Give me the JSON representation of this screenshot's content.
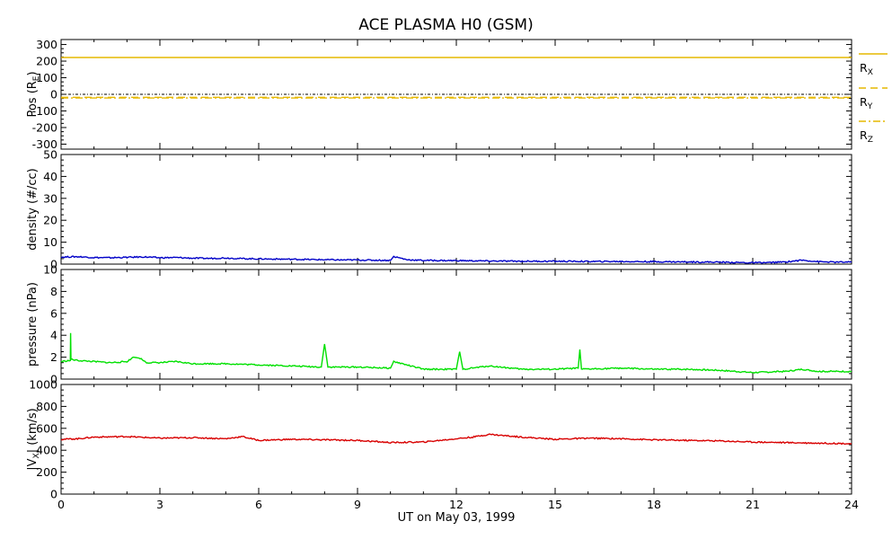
{
  "chart_data": [
    {
      "type": "line",
      "panel": "position",
      "title": "ACE PLASMA H0 (GSM)",
      "ylabel": "Pos (R",
      "ylabel_sub": "E",
      "ylabel_end": ")",
      "ylim": [
        -330,
        330
      ],
      "yticks": [
        300,
        200,
        100,
        0,
        -100,
        -200,
        -300
      ],
      "color": "#e6b800",
      "zero_line": true,
      "legend": [
        {
          "label": "R",
          "sub": "X",
          "style": "solid"
        },
        {
          "label": "R",
          "sub": "Y",
          "style": "dashed"
        },
        {
          "label": "R",
          "sub": "Z",
          "style": "dashdot"
        }
      ],
      "series": [
        {
          "name": "RX",
          "style": "solid",
          "x": [
            0,
            24
          ],
          "values": [
            222,
            222
          ]
        },
        {
          "name": "RY",
          "style": "dashed",
          "x": [
            0,
            24
          ],
          "values": [
            -18,
            -18
          ]
        },
        {
          "name": "RZ",
          "style": "dashdot",
          "x": [
            0,
            24
          ],
          "values": [
            -22,
            -22
          ]
        }
      ]
    },
    {
      "type": "line",
      "panel": "density",
      "ylabel": "density (#/cc)",
      "ylim": [
        0,
        50
      ],
      "yticks": [
        50,
        40,
        30,
        20,
        10,
        0
      ],
      "color": "#0000c8",
      "series": [
        {
          "name": "density",
          "x": [
            0,
            0.5,
            1,
            1.5,
            2,
            2.5,
            3,
            3.5,
            4,
            4.5,
            5,
            5.5,
            6,
            6.5,
            7,
            7.5,
            8,
            8.5,
            9,
            9.5,
            10,
            10.1,
            10.5,
            11,
            12,
            13,
            14,
            15,
            16,
            17,
            18,
            19,
            20,
            21,
            21.5,
            22,
            22.5,
            23,
            23.5,
            24
          ],
          "values": [
            3.2,
            3.4,
            3.0,
            2.9,
            3.1,
            3.3,
            2.9,
            3.0,
            2.7,
            2.6,
            2.8,
            2.5,
            2.4,
            2.3,
            2.2,
            2.1,
            2.0,
            1.9,
            1.9,
            1.8,
            1.7,
            3.5,
            2.0,
            1.7,
            1.6,
            1.4,
            1.3,
            1.3,
            1.2,
            1.2,
            1.1,
            1.0,
            0.9,
            0.6,
            0.7,
            1.0,
            1.8,
            1.1,
            0.9,
            0.9
          ]
        }
      ]
    },
    {
      "type": "line",
      "panel": "pressure",
      "ylabel": "pressure (nPa)",
      "ylim": [
        0,
        10
      ],
      "yticks": [
        10,
        8,
        6,
        4,
        2,
        0
      ],
      "color": "#00e000",
      "series": [
        {
          "name": "pressure",
          "x": [
            0,
            0.28,
            0.29,
            0.3,
            0.5,
            1,
            1.5,
            2,
            2.2,
            2.4,
            2.6,
            3,
            3.5,
            4,
            5,
            6,
            7,
            7.9,
            8.0,
            8.1,
            9,
            10,
            10.1,
            11,
            12,
            12.1,
            12.2,
            13,
            14,
            15,
            15.7,
            15.75,
            15.8,
            17,
            18,
            19,
            20,
            21,
            22,
            22.5,
            23,
            24
          ],
          "values": [
            1.6,
            1.7,
            4.2,
            1.8,
            1.7,
            1.6,
            1.5,
            1.6,
            2.0,
            1.9,
            1.5,
            1.5,
            1.6,
            1.4,
            1.4,
            1.3,
            1.2,
            1.1,
            3.2,
            1.1,
            1.1,
            1.0,
            1.6,
            0.9,
            0.9,
            2.5,
            0.9,
            1.2,
            0.9,
            0.9,
            1.0,
            2.7,
            0.9,
            1.0,
            0.9,
            0.9,
            0.8,
            0.6,
            0.7,
            0.9,
            0.7,
            0.7
          ]
        }
      ]
    },
    {
      "type": "line",
      "panel": "velocity",
      "ylabel": "|V",
      "ylabel_sub": "X",
      "ylabel_end": "| (km/s)",
      "ylim": [
        0,
        1000
      ],
      "yticks": [
        1000,
        800,
        600,
        400,
        200,
        0
      ],
      "color": "#d80000",
      "xlabel": "UT on May 03, 1999",
      "xlim": [
        0,
        24
      ],
      "xticks": [
        0,
        3,
        6,
        9,
        12,
        15,
        18,
        21,
        24
      ],
      "series": [
        {
          "name": "VX",
          "x": [
            0,
            0.5,
            1,
            2,
            3,
            4,
            5,
            5.5,
            6,
            7,
            8,
            9,
            10,
            11,
            12,
            12.5,
            13,
            14,
            15,
            16,
            17,
            18,
            19,
            20,
            21,
            22,
            23,
            24
          ],
          "values": [
            500,
            505,
            520,
            525,
            510,
            515,
            505,
            525,
            490,
            500,
            495,
            490,
            470,
            475,
            505,
            520,
            545,
            520,
            500,
            510,
            505,
            495,
            490,
            485,
            475,
            470,
            465,
            460
          ]
        }
      ]
    }
  ]
}
